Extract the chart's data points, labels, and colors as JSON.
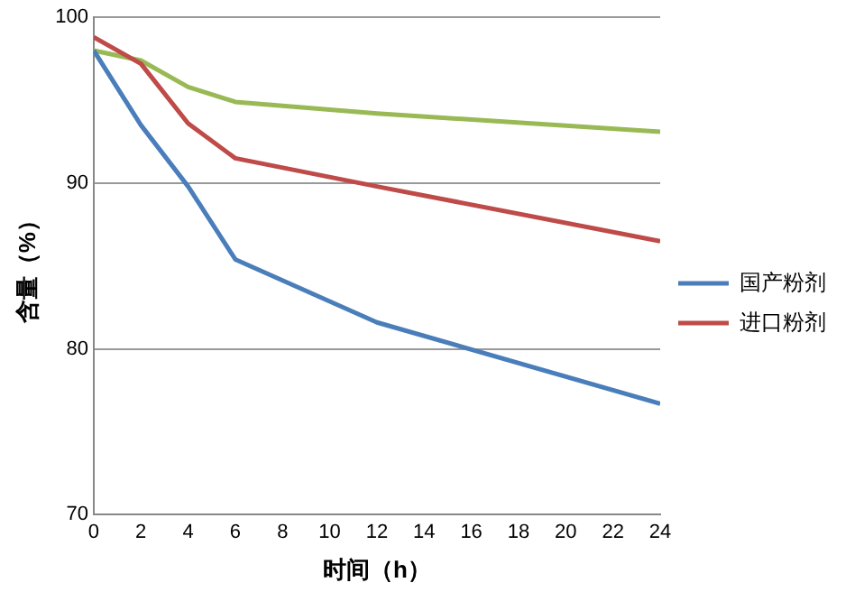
{
  "chart_data": {
    "type": "line",
    "xlabel": "时间（h）",
    "ylabel": "含量（%）",
    "xlim": [
      0,
      24
    ],
    "xticks": [
      0,
      2,
      4,
      6,
      8,
      10,
      12,
      14,
      16,
      18,
      20,
      22,
      24
    ],
    "ylim": [
      70,
      100
    ],
    "yticks": [
      70,
      80,
      90,
      100
    ],
    "grid": "y",
    "legend": "right",
    "marker": "none",
    "line_style": "solid",
    "series": [
      {
        "name": "国产粉剂",
        "color": "#4a7ebb",
        "x": [
          0,
          2,
          4,
          6,
          12,
          24
        ],
        "values": [
          98.0,
          93.5,
          89.8,
          85.4,
          81.6,
          76.7
        ]
      },
      {
        "name": "进口粉剂",
        "color": "#be4b48",
        "x": [
          0,
          2,
          4,
          6,
          12,
          24
        ],
        "values": [
          98.8,
          97.2,
          93.6,
          91.5,
          89.8,
          86.5
        ]
      },
      {
        "color": "#98b954",
        "x": [
          0,
          2,
          4,
          6,
          12,
          24
        ],
        "values": [
          98.0,
          97.4,
          95.8,
          94.9,
          94.2,
          93.1
        ]
      }
    ]
  }
}
